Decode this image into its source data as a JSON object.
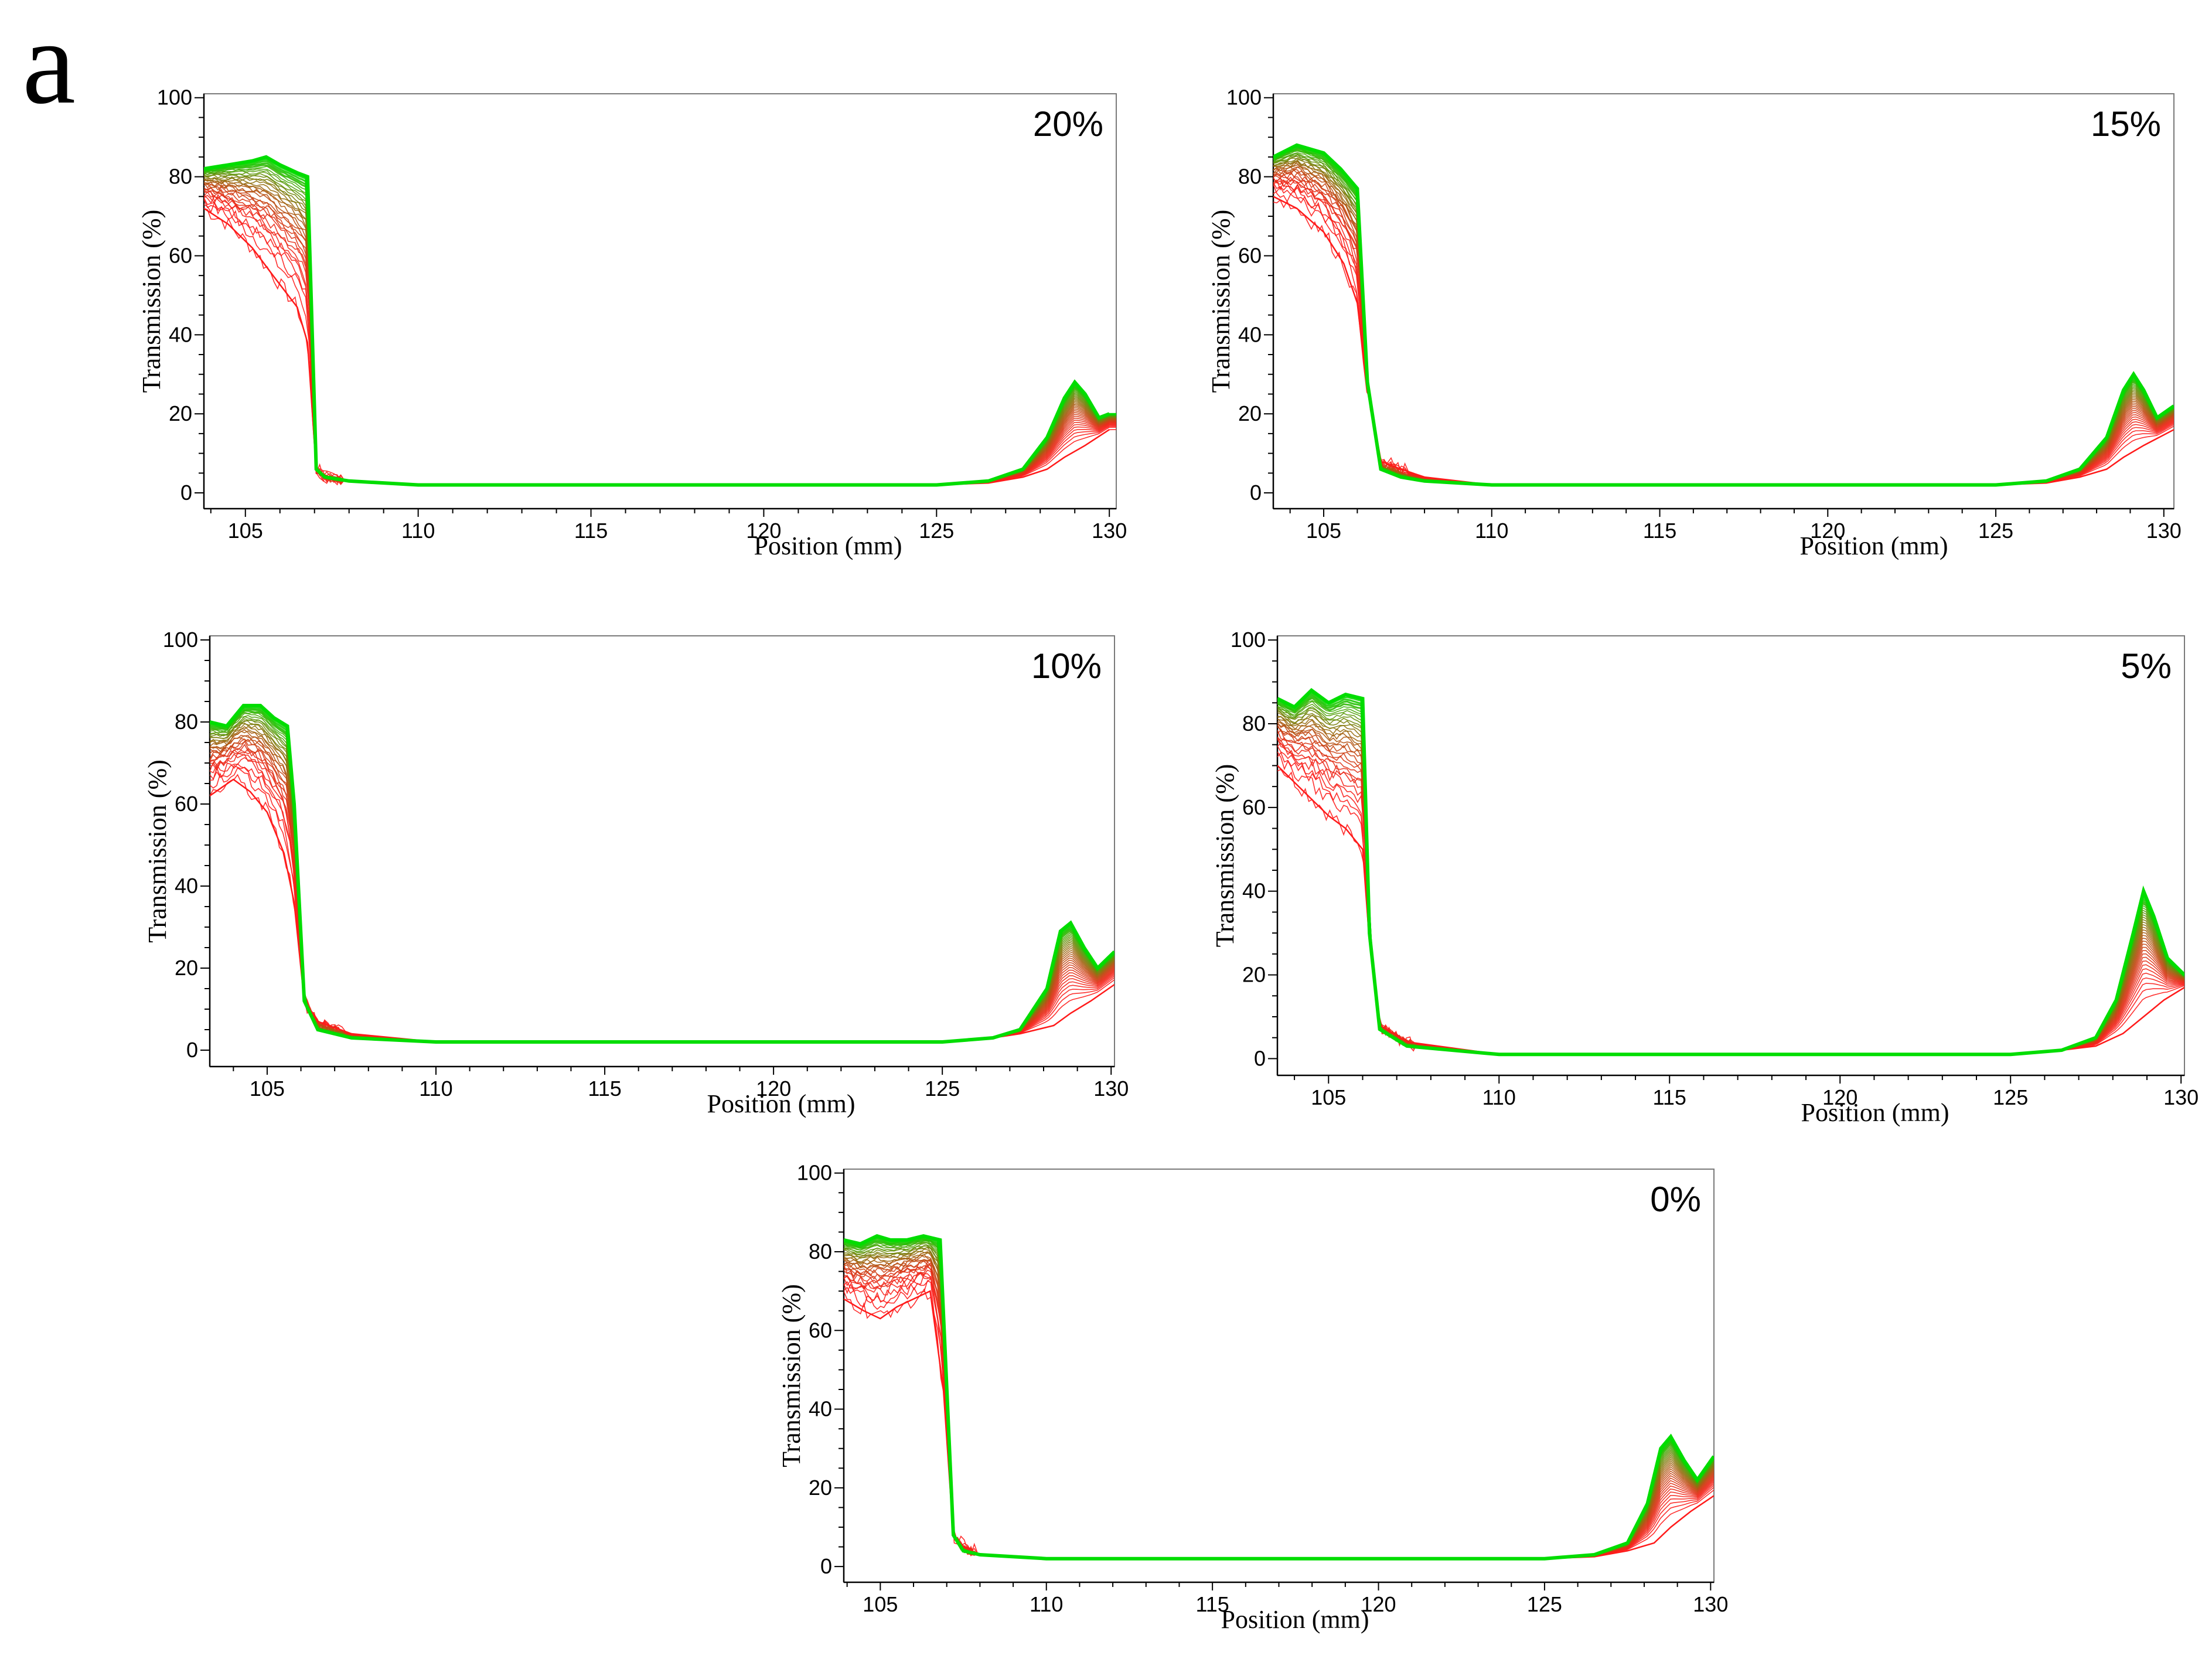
{
  "figure": {
    "panel_letter": "a",
    "colors": {
      "early_curves": "#ff1a1a",
      "late_curves": "#00dd00",
      "frame": "#7a7a7a",
      "axis": "#000000"
    }
  },
  "chart_data": [
    {
      "type": "line",
      "title": "20%",
      "xlabel": "Position (mm)",
      "ylabel": "Transmission (%)",
      "xlim": [
        103.8,
        130.2
      ],
      "ylim": [
        -4,
        101
      ],
      "xticks": [
        "105",
        "110",
        "115",
        "120",
        "125",
        "130"
      ],
      "yticks": [
        "0",
        "20",
        "40",
        "60",
        "80",
        "100"
      ],
      "series": [
        {
          "name": "first scan (red)",
          "x": [
            103.8,
            104.5,
            105.2,
            105.8,
            106.5,
            106.8,
            107.05,
            107.3,
            108,
            110,
            125,
            126.5,
            127.5,
            128.2,
            128.7,
            129.3,
            130
          ],
          "y": [
            72,
            68,
            62,
            55,
            47,
            38,
            6,
            4,
            3,
            2,
            2,
            2.5,
            4,
            6,
            9,
            12,
            16
          ]
        },
        {
          "name": "final scan (green)",
          "x": [
            103.8,
            104.5,
            105.2,
            105.6,
            106,
            106.5,
            106.8,
            107.05,
            107.3,
            108,
            110,
            125,
            126.5,
            127.5,
            128.2,
            128.7,
            129,
            129.3,
            129.7,
            130
          ],
          "y": [
            82,
            83,
            84,
            85,
            83,
            81,
            80,
            6,
            4,
            3,
            2,
            2,
            3,
            6,
            14,
            24,
            28,
            25,
            19,
            20
          ]
        }
      ]
    },
    {
      "type": "line",
      "title": "15%",
      "xlabel": "Position (mm)",
      "ylabel": "Transmission (%)",
      "xlim": [
        103.5,
        130.3
      ],
      "ylim": [
        -4,
        101
      ],
      "xticks": [
        "105",
        "110",
        "115",
        "120",
        "125",
        "130"
      ],
      "yticks": [
        "0",
        "20",
        "40",
        "60",
        "80",
        "100"
      ],
      "series": [
        {
          "name": "first scan (red)",
          "x": [
            103.5,
            104.2,
            105,
            105.6,
            106,
            106.3,
            106.7,
            107.3,
            108,
            110,
            125,
            126.5,
            127.5,
            128.3,
            128.8,
            129.4,
            130.3
          ],
          "y": [
            75,
            72,
            66,
            58,
            48,
            26,
            8,
            6,
            4,
            2,
            2,
            2.5,
            4,
            6,
            9,
            12,
            16
          ]
        },
        {
          "name": "final scan (green)",
          "x": [
            103.5,
            104.2,
            105,
            105.5,
            106,
            106.3,
            106.7,
            107.3,
            108,
            110,
            125,
            126.5,
            127.5,
            128.3,
            128.8,
            129.1,
            129.4,
            129.8,
            130.3
          ],
          "y": [
            85,
            88,
            86,
            82,
            77,
            28,
            6,
            4,
            3,
            2,
            2,
            3,
            6,
            14,
            26,
            30,
            26,
            19,
            22
          ]
        }
      ]
    },
    {
      "type": "line",
      "title": "10%",
      "xlabel": "Position (mm)",
      "ylabel": "Transmission (%)",
      "xlim": [
        103.3,
        130.1
      ],
      "ylim": [
        -4,
        101
      ],
      "xticks": [
        "105",
        "110",
        "115",
        "120",
        "125",
        "130"
      ],
      "yticks": [
        "0",
        "20",
        "40",
        "60",
        "80",
        "100"
      ],
      "series": [
        {
          "name": "first scan (red)",
          "x": [
            103.3,
            104,
            104.5,
            105,
            105.5,
            105.8,
            106.1,
            106.5,
            107.5,
            110,
            125,
            126.5,
            127.3,
            128.3,
            128.8,
            129.4,
            130.1
          ],
          "y": [
            62,
            66,
            63,
            58,
            48,
            36,
            12,
            7,
            4,
            2,
            2,
            3,
            4,
            6,
            9,
            12,
            16
          ]
        },
        {
          "name": "final scan (green)",
          "x": [
            103.3,
            103.8,
            104.3,
            104.8,
            105.2,
            105.6,
            105.8,
            106.1,
            106.5,
            107.5,
            110,
            125,
            126.5,
            127.3,
            128.1,
            128.5,
            128.8,
            129.2,
            129.6,
            130.1
          ],
          "y": [
            80,
            79,
            84,
            84,
            81,
            79,
            60,
            12,
            5,
            3,
            2,
            2,
            3,
            5,
            15,
            29,
            31,
            25,
            20,
            24
          ]
        }
      ]
    },
    {
      "type": "line",
      "title": "5%",
      "xlabel": "Position (mm)",
      "ylabel": "Transmission (%)",
      "xlim": [
        103.5,
        130.1
      ],
      "ylim": [
        -4,
        101
      ],
      "xticks": [
        "105",
        "110",
        "115",
        "120",
        "125",
        "130"
      ],
      "yticks": [
        "0",
        "20",
        "40",
        "60",
        "80",
        "100"
      ],
      "series": [
        {
          "name": "first scan (red)",
          "x": [
            103.5,
            104,
            104.5,
            105,
            105.5,
            106,
            106.2,
            106.5,
            107.3,
            110,
            125,
            126.5,
            127.5,
            128.3,
            128.9,
            129.5,
            130.1
          ],
          "y": [
            70,
            66,
            62,
            58,
            55,
            50,
            28,
            8,
            4,
            1,
            1,
            2,
            3,
            6,
            10,
            14,
            17
          ]
        },
        {
          "name": "final scan (green)",
          "x": [
            103.5,
            104,
            104.5,
            105,
            105.5,
            106,
            106.2,
            106.5,
            107.3,
            110,
            125,
            126.5,
            127.5,
            128.1,
            128.6,
            128.9,
            129.2,
            129.6,
            130.1
          ],
          "y": [
            86,
            84,
            88,
            85,
            87,
            86,
            30,
            7,
            3,
            1,
            1,
            2,
            5,
            14,
            30,
            40,
            34,
            24,
            20
          ]
        }
      ]
    },
    {
      "type": "line",
      "title": "0%",
      "xlabel": "Position (mm)",
      "ylabel": "Transmission (%)",
      "xlim": [
        103.9,
        130.1
      ],
      "ylim": [
        -4,
        101
      ],
      "xticks": [
        "105",
        "110",
        "115",
        "120",
        "125",
        "130"
      ],
      "yticks": [
        "0",
        "20",
        "40",
        "60",
        "80",
        "100"
      ],
      "series": [
        {
          "name": "first scan (red)",
          "x": [
            103.9,
            104.5,
            105,
            105.5,
            106,
            106.5,
            106.9,
            107.2,
            107.5,
            108,
            110,
            125,
            126.5,
            127.5,
            128.3,
            128.8,
            129.4,
            130.1
          ],
          "y": [
            68,
            65,
            63,
            66,
            68,
            70,
            45,
            8,
            5,
            3,
            2,
            2,
            2.5,
            4,
            6,
            10,
            14,
            18
          ]
        },
        {
          "name": "final scan (green)",
          "x": [
            103.9,
            104.4,
            104.9,
            105.3,
            105.8,
            106.3,
            106.8,
            107.2,
            107.5,
            108,
            110,
            125,
            126.5,
            127.5,
            128.1,
            128.5,
            128.8,
            129.2,
            129.6,
            130.1
          ],
          "y": [
            83,
            82,
            84,
            83,
            83,
            84,
            83,
            8,
            4,
            3,
            2,
            2,
            3,
            6,
            16,
            30,
            33,
            27,
            22,
            28
          ]
        }
      ]
    }
  ]
}
